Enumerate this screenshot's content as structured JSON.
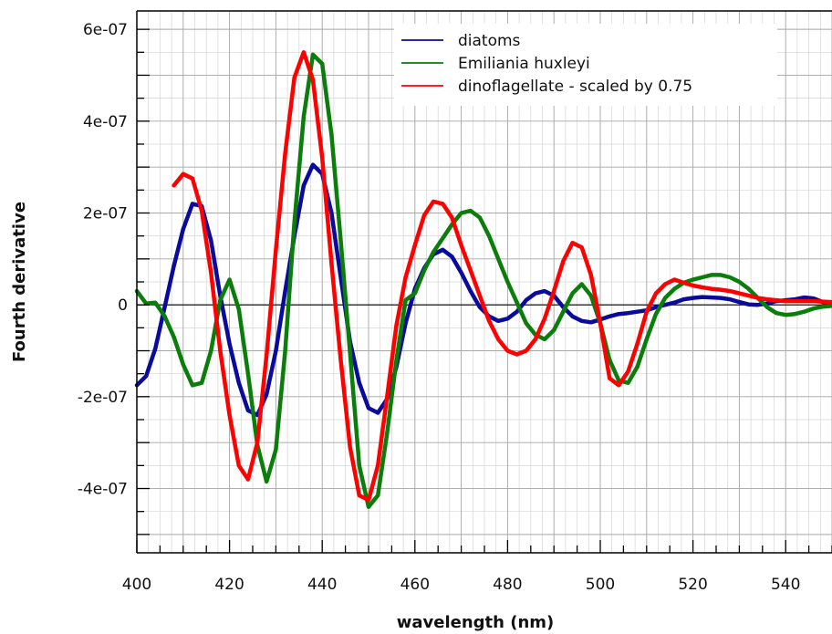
{
  "chart_data": {
    "type": "line",
    "title": "",
    "xlabel": "wavelength (nm)",
    "ylabel": "Fourth derivative",
    "xlim": [
      400,
      550
    ],
    "ylim": [
      -5.4e-07,
      6.4e-07
    ],
    "x_ticks": [
      400,
      420,
      440,
      460,
      480,
      500,
      520,
      540
    ],
    "x_tick_labels": [
      "400",
      "420",
      "440",
      "460",
      "480",
      "500",
      "520",
      "540"
    ],
    "y_ticks": [
      -4e-07,
      -2e-07,
      0,
      2e-07,
      4e-07,
      6e-07
    ],
    "y_tick_labels": [
      "-4e-07",
      "-2e-07",
      "0",
      "2e-07",
      "4e-07",
      "6e-07"
    ],
    "grid": true,
    "zero_line": true,
    "legend_position": "top-right",
    "series": [
      {
        "name": "diatoms",
        "color": "#0a0a9c",
        "x": [
          400,
          402,
          404,
          406,
          408,
          410,
          412,
          414,
          416,
          418,
          420,
          422,
          424,
          426,
          428,
          430,
          432,
          434,
          436,
          438,
          440,
          442,
          444,
          446,
          448,
          450,
          452,
          454,
          456,
          458,
          460,
          462,
          464,
          466,
          468,
          470,
          472,
          474,
          476,
          478,
          480,
          482,
          484,
          486,
          488,
          490,
          492,
          494,
          496,
          498,
          500,
          502,
          504,
          506,
          508,
          510,
          512,
          514,
          516,
          518,
          520,
          522,
          524,
          526,
          528,
          530,
          532,
          534,
          536,
          538,
          540,
          542,
          544,
          546,
          548,
          550
        ],
        "y": [
          -1.75e-07,
          -1.55e-07,
          -9.5e-08,
          -5e-09,
          8.5e-08,
          1.65e-07,
          2.2e-07,
          2.15e-07,
          1.4e-07,
          2e-08,
          -8.5e-08,
          -1.7e-07,
          -2.3e-07,
          -2.4e-07,
          -1.95e-07,
          -1e-07,
          3e-08,
          1.5e-07,
          2.6e-07,
          3.05e-07,
          2.85e-07,
          2e-07,
          6e-08,
          -8e-08,
          -1.7e-07,
          -2.25e-07,
          -2.35e-07,
          -2.05e-07,
          -1.35e-07,
          -4e-08,
          3.5e-08,
          8e-08,
          1.1e-07,
          1.2e-07,
          1.05e-07,
          7e-08,
          3e-08,
          -5e-09,
          -2.5e-08,
          -3.5e-08,
          -3e-08,
          -1.5e-08,
          1e-08,
          2.5e-08,
          3e-08,
          2e-08,
          -5e-09,
          -2.5e-08,
          -3.5e-08,
          -3.8e-08,
          -3.2e-08,
          -2.5e-08,
          -2e-08,
          -1.8e-08,
          -1.5e-08,
          -1.2e-08,
          -5e-09,
          0.0,
          5e-09,
          1.2e-08,
          1.5e-08,
          1.7e-08,
          1.6e-08,
          1.5e-08,
          1.2e-08,
          6e-09,
          1e-09,
          0.0,
          3e-09,
          8e-09,
          1e-08,
          1.2e-08,
          1.6e-08,
          1.4e-08,
          6e-09,
          3e-09
        ]
      },
      {
        "name": "Emiliania huxleyi",
        "color": "#0a7d0a",
        "x": [
          400,
          402,
          404,
          406,
          408,
          410,
          412,
          414,
          416,
          418,
          420,
          422,
          424,
          426,
          428,
          430,
          432,
          434,
          436,
          438,
          440,
          442,
          444,
          446,
          448,
          450,
          452,
          454,
          456,
          458,
          460,
          462,
          464,
          466,
          468,
          470,
          472,
          474,
          476,
          478,
          480,
          482,
          484,
          486,
          488,
          490,
          492,
          494,
          496,
          498,
          500,
          502,
          504,
          506,
          508,
          510,
          512,
          514,
          516,
          518,
          520,
          522,
          524,
          526,
          528,
          530,
          532,
          534,
          536,
          538,
          540,
          542,
          544,
          546,
          548,
          550
        ],
        "y": [
          3e-08,
          3e-09,
          5e-09,
          -2.5e-08,
          -7e-08,
          -1.3e-07,
          -1.75e-07,
          -1.7e-07,
          -1e-07,
          1e-08,
          5.5e-08,
          -1e-08,
          -1.5e-07,
          -3.05e-07,
          -3.85e-07,
          -3.15e-07,
          -1e-07,
          1.8e-07,
          4.1e-07,
          5.45e-07,
          5.25e-07,
          3.7e-07,
          1.4e-07,
          -1.05e-07,
          -3.5e-07,
          -4.4e-07,
          -4.15e-07,
          -2.8e-07,
          -1.2e-07,
          1e-08,
          2.5e-08,
          7.5e-08,
          1.15e-07,
          1.45e-07,
          1.75e-07,
          2e-07,
          2.05e-07,
          1.9e-07,
          1.5e-07,
          1e-07,
          5e-08,
          5e-09,
          -4e-08,
          -6.5e-08,
          -7.5e-08,
          -5.5e-08,
          -1.5e-08,
          2.5e-08,
          4.5e-08,
          2e-08,
          -4e-08,
          -1.2e-07,
          -1.65e-07,
          -1.7e-07,
          -1.35e-07,
          -7.5e-08,
          -2e-08,
          1.5e-08,
          3.5e-08,
          4.8e-08,
          5.5e-08,
          6e-08,
          6.5e-08,
          6.5e-08,
          6e-08,
          5e-08,
          3.5e-08,
          1.5e-08,
          -5e-09,
          -1.8e-08,
          -2.2e-08,
          -2e-08,
          -1.5e-08,
          -8e-09,
          -4e-09,
          -2e-09
        ]
      },
      {
        "name": "dinoflagellate - scaled by 0.75",
        "color": "#ff0000",
        "x": [
          408,
          410,
          412,
          414,
          416,
          418,
          420,
          422,
          424,
          426,
          428,
          430,
          432,
          434,
          436,
          438,
          440,
          442,
          444,
          446,
          448,
          450,
          452,
          454,
          456,
          458,
          460,
          462,
          464,
          466,
          468,
          470,
          472,
          474,
          476,
          478,
          480,
          482,
          484,
          486,
          488,
          490,
          492,
          494,
          496,
          498,
          500,
          502,
          504,
          506,
          508,
          510,
          512,
          514,
          516,
          518,
          520,
          522,
          524,
          526,
          528,
          530,
          532,
          534,
          536,
          538,
          540,
          542,
          544,
          546,
          548,
          550
        ],
        "y": [
          2.6e-07,
          2.85e-07,
          2.75e-07,
          2.05e-07,
          7e-08,
          -1e-07,
          -2.4e-07,
          -3.5e-07,
          -3.8e-07,
          -3e-07,
          -1.1e-07,
          1.2e-07,
          3.3e-07,
          4.95e-07,
          5.5e-07,
          4.9e-07,
          3.2e-07,
          9e-08,
          -1.2e-07,
          -3.1e-07,
          -4.15e-07,
          -4.25e-07,
          -3.5e-07,
          -2e-07,
          -4.5e-08,
          6e-08,
          1.3e-07,
          1.95e-07,
          2.25e-07,
          2.2e-07,
          1.9e-07,
          1.3e-07,
          7.5e-08,
          2e-08,
          -3.5e-08,
          -7.5e-08,
          -1e-07,
          -1.08e-07,
          -1e-07,
          -7.5e-08,
          -3e-08,
          3e-08,
          9.5e-08,
          1.35e-07,
          1.25e-07,
          6.5e-08,
          -4e-08,
          -1.6e-07,
          -1.75e-07,
          -1.45e-07,
          -8.5e-08,
          -1.5e-08,
          2.5e-08,
          4.5e-08,
          5.5e-08,
          4.8e-08,
          4.2e-08,
          3.8e-08,
          3.5e-08,
          3.3e-08,
          3e-08,
          2.5e-08,
          2e-08,
          1.5e-08,
          1.2e-08,
          1e-08,
          8e-09,
          8e-09,
          8e-09,
          8e-09,
          7e-09,
          6e-09
        ]
      }
    ]
  }
}
